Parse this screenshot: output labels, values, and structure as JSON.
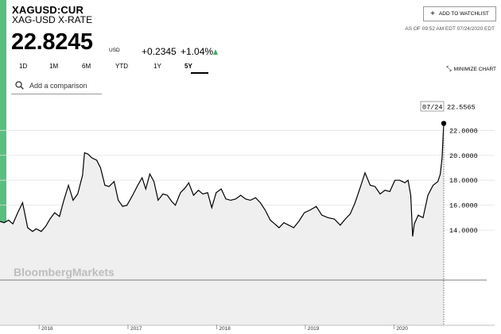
{
  "header": {
    "ticker": "XAGUSD:CUR",
    "name": "XAG-USD X-RATE",
    "price": "22.8245",
    "currency": "USD",
    "change": "+0.2345",
    "change_percent": "+1.04%",
    "change_direction_icon": "triangle-up-icon",
    "watchlist_plus": "+",
    "watchlist_label": "ADD TO WATCHLIST",
    "as_of": "AS OF 09:52 AM EDT 07/24/2020 EDT"
  },
  "tabs": [
    {
      "label": "1D",
      "active": false
    },
    {
      "label": "1M",
      "active": false
    },
    {
      "label": "6M",
      "active": false
    },
    {
      "label": "YTD",
      "active": false
    },
    {
      "label": "1Y",
      "active": false
    },
    {
      "label": "5Y",
      "active": true
    }
  ],
  "minimize": {
    "label": "MINIMIZE CHART",
    "icon": "collapse-arrows-icon"
  },
  "comparison": {
    "placeholder": "Add a comparison",
    "icon": "search-icon"
  },
  "watermark": "BloombergMarkets",
  "colors": {
    "accent": "#5bbd7f",
    "up": "#3fae6a",
    "area_fill": "#efefef",
    "line": "#000000"
  },
  "chart_data": {
    "type": "area",
    "title": "",
    "xlabel": "",
    "ylabel": "",
    "x_ticks": [
      "2016",
      "2017",
      "2018",
      "2019",
      "2020"
    ],
    "y_ticks": [
      "14.0000",
      "16.0000",
      "18.0000",
      "20.0000",
      "22.0000"
    ],
    "ylim": [
      10,
      24.5
    ],
    "xlim": [
      "2015-07-24",
      "2020-07-24"
    ],
    "grid": true,
    "last_point": {
      "date": "07/24",
      "value": 22.5565
    },
    "series": [
      {
        "x": [
          "2015-07-24",
          "2015-08-10",
          "2015-08-28",
          "2015-09-15",
          "2015-10-05",
          "2015-10-25",
          "2015-11-15",
          "2015-12-05",
          "2015-12-20",
          "2016-01-10",
          "2016-01-28",
          "2016-02-15",
          "2016-03-05",
          "2016-03-25",
          "2016-04-12",
          "2016-05-01",
          "2016-05-20",
          "2016-06-08",
          "2016-06-28",
          "2016-07-06",
          "2016-07-20",
          "2016-08-05",
          "2016-08-25",
          "2016-09-10",
          "2016-09-28",
          "2016-10-15",
          "2016-11-05",
          "2016-11-22",
          "2016-12-10",
          "2016-12-28",
          "2017-01-20",
          "2017-02-10",
          "2017-02-28",
          "2017-03-15",
          "2017-04-01",
          "2017-04-18",
          "2017-05-05",
          "2017-05-25",
          "2017-06-12",
          "2017-06-30",
          "2017-07-15",
          "2017-08-05",
          "2017-08-25",
          "2017-09-08",
          "2017-09-28",
          "2017-10-18",
          "2017-11-05",
          "2017-11-25",
          "2017-12-12",
          "2017-12-30",
          "2018-01-20",
          "2018-02-08",
          "2018-02-28",
          "2018-03-20",
          "2018-04-10",
          "2018-04-30",
          "2018-05-20",
          "2018-06-10",
          "2018-06-30",
          "2018-07-20",
          "2018-08-10",
          "2018-08-28",
          "2018-09-15",
          "2018-10-05",
          "2018-10-25",
          "2018-11-14",
          "2018-12-05",
          "2018-12-28",
          "2019-01-20",
          "2019-02-15",
          "2019-03-10",
          "2019-04-05",
          "2019-04-30",
          "2019-05-25",
          "2019-06-15",
          "2019-07-05",
          "2019-07-25",
          "2019-08-15",
          "2019-09-04",
          "2019-09-25",
          "2019-10-15",
          "2019-11-05",
          "2019-11-25",
          "2019-12-15",
          "2020-01-05",
          "2020-01-25",
          "2020-02-15",
          "2020-02-28",
          "2020-03-10",
          "2020-03-18",
          "2020-03-25",
          "2020-04-10",
          "2020-04-30",
          "2020-05-20",
          "2020-06-10",
          "2020-06-30",
          "2020-07-10",
          "2020-07-17",
          "2020-07-21",
          "2020-07-24"
        ],
        "values": [
          14.7,
          14.6,
          14.8,
          14.5,
          15.4,
          16.2,
          14.2,
          13.9,
          14.1,
          13.9,
          14.3,
          14.9,
          15.4,
          15.1,
          16.4,
          17.6,
          16.4,
          16.9,
          18.4,
          20.2,
          20.1,
          19.8,
          19.6,
          19.0,
          17.6,
          17.5,
          17.9,
          16.4,
          15.9,
          16.0,
          16.8,
          17.6,
          18.2,
          17.3,
          18.5,
          17.9,
          16.4,
          16.9,
          16.8,
          16.3,
          16.0,
          17.0,
          17.4,
          17.8,
          16.8,
          17.2,
          16.9,
          17.0,
          15.8,
          17.0,
          17.3,
          16.5,
          16.4,
          16.5,
          16.8,
          16.5,
          16.4,
          16.6,
          16.2,
          15.6,
          14.8,
          14.5,
          14.2,
          14.6,
          14.4,
          14.2,
          14.7,
          15.4,
          15.6,
          15.9,
          15.2,
          15.0,
          14.9,
          14.4,
          14.9,
          15.3,
          16.2,
          17.4,
          18.6,
          17.6,
          17.5,
          16.9,
          17.2,
          17.1,
          18.0,
          18.0,
          17.8,
          18.0,
          16.8,
          13.5,
          14.5,
          15.2,
          15.0,
          16.8,
          17.6,
          17.9,
          18.5,
          19.8,
          21.4,
          22.5565
        ]
      }
    ]
  }
}
